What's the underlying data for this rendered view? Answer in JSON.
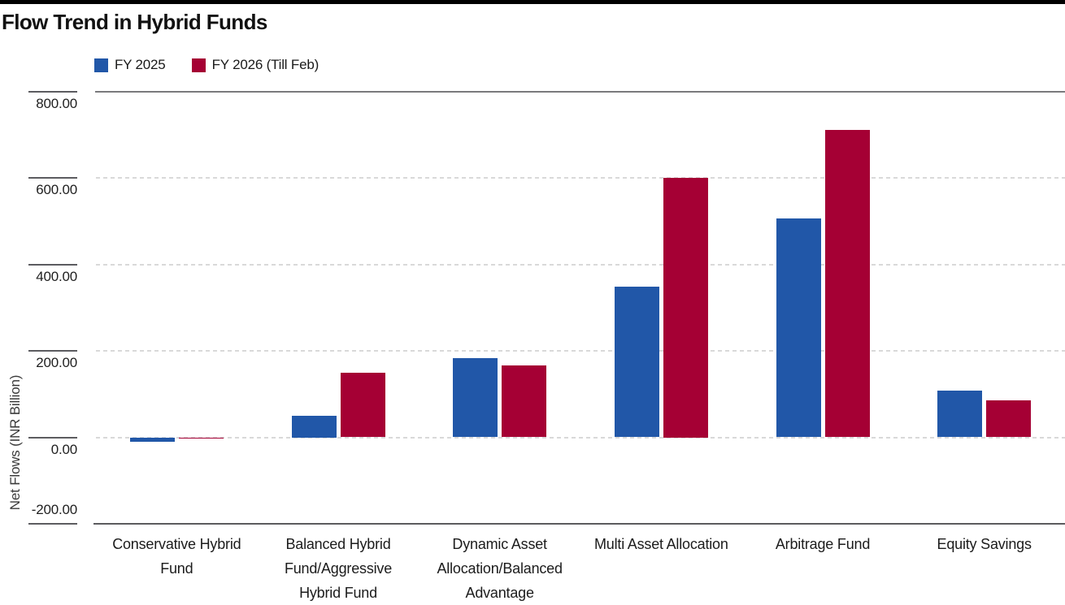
{
  "title": "Flow Trend in Hybrid Funds",
  "colors": {
    "accent_bar": "#000000",
    "fy2025_blue": "#2157a8",
    "fy2026_crimson": "#a50034"
  },
  "chart_data": {
    "type": "bar",
    "title": "Flow Trend in Hybrid Funds",
    "xlabel": "",
    "ylabel": "Net Flows (INR Billion)",
    "ylim": [
      -200,
      800
    ],
    "yticks": [
      800,
      600,
      400,
      200,
      0,
      -200
    ],
    "ytick_labels": [
      "800.00",
      "600.00",
      "400.00",
      "200.00",
      "0.00",
      "-200.00"
    ],
    "grid": "horizontal-dashed",
    "legend_position": "top-left",
    "categories": [
      "Conservative Hybrid Fund",
      "Balanced Hybrid Fund/Aggressive Hybrid Fund",
      "Dynamic Asset Allocation/Balanced Advantage",
      "Multi Asset Allocation",
      "Arbitrage Fund",
      "Equity Savings"
    ],
    "categories_wrapped": [
      [
        "Conservative Hybrid",
        "Fund"
      ],
      [
        "Balanced Hybrid",
        "Fund/Aggressive",
        "Hybrid Fund"
      ],
      [
        "Dynamic Asset",
        "Allocation/Balanced",
        "Advantage"
      ],
      [
        "Multi Asset Allocation"
      ],
      [
        "Arbitrage Fund"
      ],
      [
        "Equity Savings"
      ]
    ],
    "series": [
      {
        "name": "FY 2025",
        "color": "#2157a8",
        "values": [
          -11,
          50,
          184,
          349,
          506,
          108
        ]
      },
      {
        "name": "FY 2026 (Till Feb)",
        "color": "#a50034",
        "values": [
          -3,
          149,
          167,
          600,
          711,
          85
        ]
      }
    ]
  }
}
